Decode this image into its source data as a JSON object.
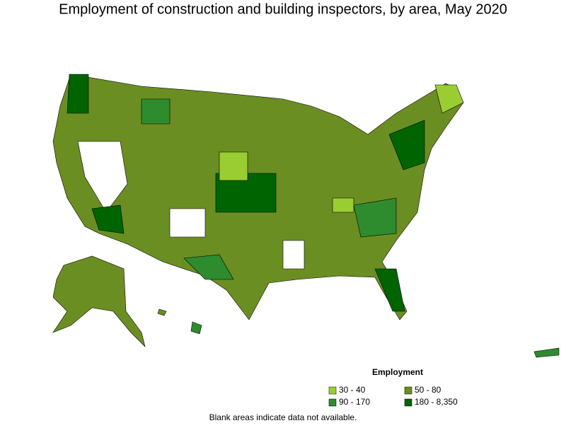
{
  "title": "Employment of construction and building inspectors, by area, May 2020",
  "legend": {
    "title": "Employment",
    "items": [
      {
        "label": "30 - 40",
        "color": "#9acd32"
      },
      {
        "label": "50 - 80",
        "color": "#6b8e23"
      },
      {
        "label": "90 - 170",
        "color": "#2e8b2e"
      },
      {
        "label": "180 - 8,350",
        "color": "#006400"
      }
    ]
  },
  "note": "Blank areas indicate data not available."
}
